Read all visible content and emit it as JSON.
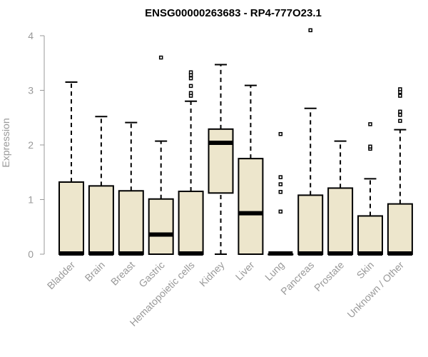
{
  "chart_data": {
    "type": "boxplot",
    "title": "ENSG00000263683 - RP4-777O23.1",
    "xlabel": "",
    "ylabel": "Expression",
    "ylim": [
      0,
      4
    ],
    "yticks": [
      0,
      1,
      2,
      3,
      4
    ],
    "grid": false,
    "box_color": "#ede6cc",
    "categories": [
      "Bladder",
      "Brain",
      "Breast",
      "Gastric",
      "Hematopoietic cells",
      "Kidney",
      "Liver",
      "Lung",
      "Pancreas",
      "Prostate",
      "Skin",
      "Unknown / Other"
    ],
    "boxes": [
      {
        "name": "Bladder",
        "q1": 0,
        "median": 0,
        "q3": 1.32,
        "whisker_low": 0,
        "whisker_high": 3.15,
        "outliers": []
      },
      {
        "name": "Brain",
        "q1": 0,
        "median": 0,
        "q3": 1.25,
        "whisker_low": 0,
        "whisker_high": 2.52,
        "outliers": []
      },
      {
        "name": "Breast",
        "q1": 0,
        "median": 0,
        "q3": 1.16,
        "whisker_low": 0,
        "whisker_high": 2.41,
        "outliers": []
      },
      {
        "name": "Gastric",
        "q1": 0,
        "median": 0.36,
        "q3": 1.01,
        "whisker_low": 0,
        "whisker_high": 2.07,
        "outliers": [
          3.6
        ]
      },
      {
        "name": "Hematopoietic cells",
        "q1": 0,
        "median": 0,
        "q3": 1.15,
        "whisker_low": 0,
        "whisker_high": 2.8,
        "outliers": [
          2.9,
          2.95,
          3.08,
          3.22,
          3.28,
          3.33
        ]
      },
      {
        "name": "Kidney",
        "q1": 1.12,
        "median": 2.04,
        "q3": 2.29,
        "whisker_low": 0,
        "whisker_high": 3.47,
        "outliers": []
      },
      {
        "name": "Liver",
        "q1": 0,
        "median": 0.75,
        "q3": 1.75,
        "whisker_low": 0,
        "whisker_high": 3.09,
        "outliers": []
      },
      {
        "name": "Lung",
        "q1": 0,
        "median": 0,
        "q3": 0,
        "whisker_low": 0,
        "whisker_high": 0,
        "outliers": [
          0.78,
          1.14,
          1.28,
          1.41,
          2.2
        ]
      },
      {
        "name": "Pancreas",
        "q1": 0,
        "median": 0,
        "q3": 1.08,
        "whisker_low": 0,
        "whisker_high": 2.67,
        "outliers": [
          4.1
        ]
      },
      {
        "name": "Prostate",
        "q1": 0,
        "median": 0,
        "q3": 1.21,
        "whisker_low": 0,
        "whisker_high": 2.07,
        "outliers": []
      },
      {
        "name": "Skin",
        "q1": 0,
        "median": 0,
        "q3": 0.7,
        "whisker_low": 0,
        "whisker_high": 1.38,
        "outliers": [
          1.93,
          1.97,
          2.38
        ]
      },
      {
        "name": "Unknown / Other",
        "q1": 0,
        "median": 0,
        "q3": 0.92,
        "whisker_low": 0,
        "whisker_high": 2.28,
        "outliers": [
          2.44,
          2.55,
          2.61,
          2.9,
          2.97,
          3.02
        ]
      }
    ]
  }
}
